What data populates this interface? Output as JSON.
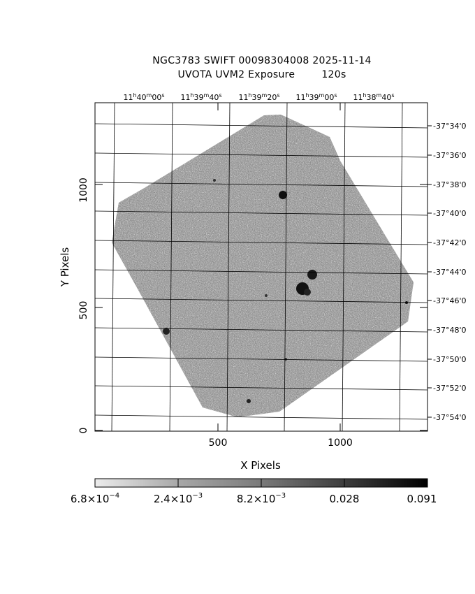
{
  "header": {
    "title_line1": "NGC3783 SWIFT 00098304008 2025-11-14",
    "title_line2": "UVOTA UVM2 Exposure        120s"
  },
  "axes": {
    "xlabel": "X Pixels",
    "ylabel": "Y Pixels",
    "x_ticks": [
      "500",
      "1000"
    ],
    "y_ticks": [
      "0",
      "500",
      "1000"
    ],
    "ra_ticks": [
      {
        "h": "11",
        "m": "40",
        "s": "00"
      },
      {
        "h": "11",
        "m": "39",
        "s": "40"
      },
      {
        "h": "11",
        "m": "39",
        "s": "20"
      },
      {
        "h": "11",
        "m": "39",
        "s": "00"
      },
      {
        "h": "11",
        "m": "38",
        "s": "40"
      }
    ],
    "dec_ticks": [
      "-37°34'0",
      "-37°36'0",
      "-37°38'0",
      "-37°40'0",
      "-37°42'0",
      "-37°44'0",
      "-37°46'0",
      "-37°48'0",
      "-37°50'0",
      "-37°52'0",
      "-37°54'0"
    ]
  },
  "colorbar": {
    "labels": [
      {
        "base": "6.8×10",
        "exp": "−4"
      },
      {
        "base": "2.4×10",
        "exp": "−3"
      },
      {
        "base": "8.2×10",
        "exp": "−3"
      },
      {
        "base": "0.028",
        "exp": ""
      },
      {
        "base": "0.091",
        "exp": ""
      }
    ],
    "scale_low": "#e8e8e8",
    "scale_high": "#000000"
  },
  "image": {
    "field_color": "#6a6a6a",
    "description_icon": "sky-exposure-image"
  }
}
